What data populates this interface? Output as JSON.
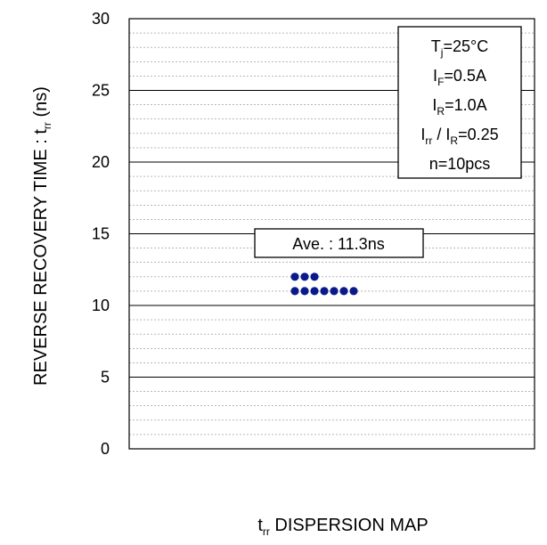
{
  "chart_data": {
    "type": "scatter",
    "title": "",
    "xlabel": {
      "sym": "t",
      "sub": "rr",
      "rest": " DISPERSION MAP"
    },
    "ylabel": {
      "main": "REVERSE RECOVERY TIME : t",
      "sub": "rr",
      "rest": " (ns)"
    },
    "ylim": [
      0,
      30
    ],
    "yticks": [
      "0",
      "5",
      "10",
      "15",
      "20",
      "25",
      "30"
    ],
    "grid": {
      "major": true,
      "minor": true,
      "minor_step": 1
    },
    "conditions": [
      {
        "sym": "T",
        "sub": "j",
        "rest": "=25°C"
      },
      {
        "sym": "I",
        "sub": "F",
        "rest": "=0.5A"
      },
      {
        "sym": "I",
        "sub": "R",
        "rest": "=1.0A"
      },
      {
        "sym": "I",
        "sub": "rr",
        "mid": " / I",
        "sub2": "R",
        "rest": "=0.25"
      },
      {
        "sym": "n=10pcs"
      }
    ],
    "annotation": "Ave. : 11.3ns",
    "point_color": "#0a1a8a",
    "points": [
      {
        "y": 12,
        "count": 3
      },
      {
        "y": 11,
        "count": 7
      }
    ]
  }
}
